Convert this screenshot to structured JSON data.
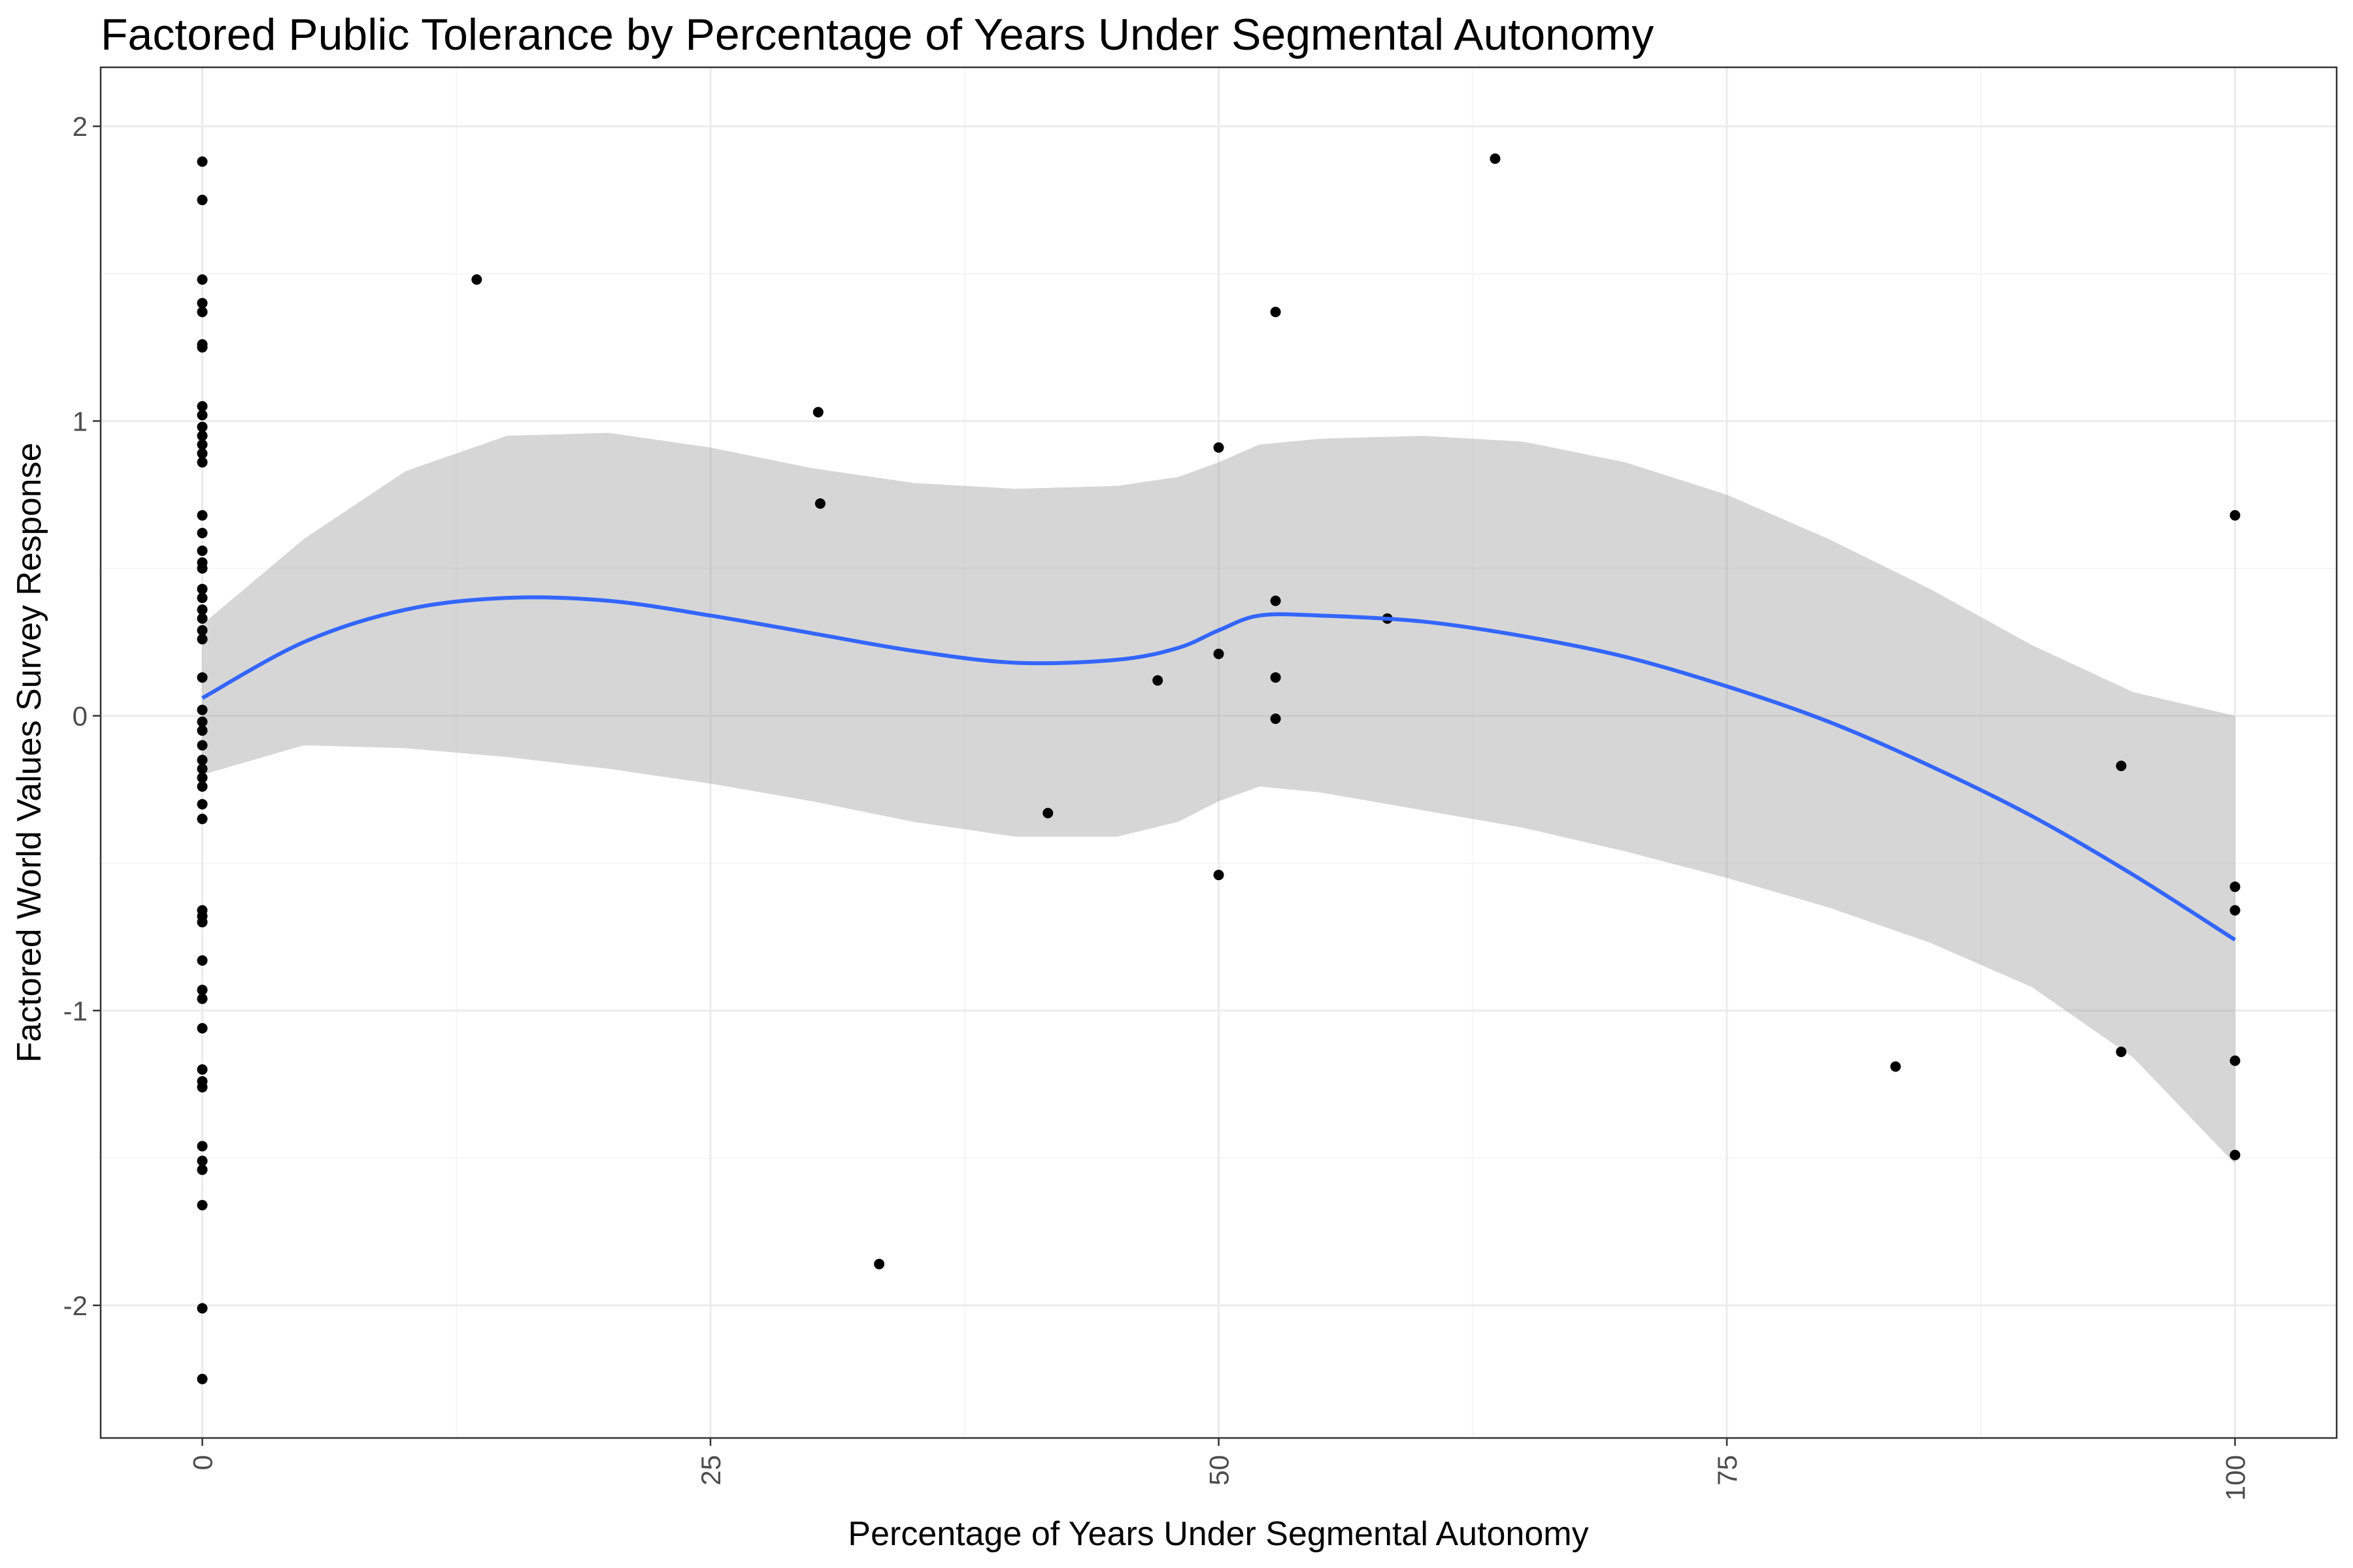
{
  "chart_data": {
    "type": "scatter",
    "title": "Factored Public Tolerance by Percentage of Years Under Segmental Autonomy",
    "xlabel": "Percentage of Years Under Segmental Autonomy",
    "ylabel": "Factored World Values Survey Response",
    "xlim": [
      -5,
      105
    ],
    "ylim": [
      -2.45,
      2.2
    ],
    "x_ticks": [
      0,
      25,
      50,
      75,
      100
    ],
    "y_ticks": [
      -2,
      -1,
      0,
      1,
      2
    ],
    "x_minor_ticks": [
      12.5,
      37.5,
      62.5,
      87.5
    ],
    "y_minor_ticks": [
      -1.5,
      -0.5,
      0.5,
      1.5
    ],
    "x_tick_labels": [
      "0",
      "25",
      "50",
      "75",
      "100"
    ],
    "y_tick_labels": [
      "-2",
      "-1",
      "0",
      "1",
      "2"
    ],
    "grid": true,
    "legend": "none",
    "colors": {
      "points": "#000000",
      "smooth_line": "#3366FF",
      "confidence_band": "#999999",
      "grid": "#ebebeb"
    },
    "points": [
      {
        "x": 0,
        "y": 1.88
      },
      {
        "x": 0,
        "y": 1.75
      },
      {
        "x": 0,
        "y": 1.48
      },
      {
        "x": 0,
        "y": 1.4
      },
      {
        "x": 0,
        "y": 1.37
      },
      {
        "x": 0,
        "y": 1.26
      },
      {
        "x": 0,
        "y": 1.25
      },
      {
        "x": 0,
        "y": 1.05
      },
      {
        "x": 0,
        "y": 1.02
      },
      {
        "x": 0,
        "y": 0.98
      },
      {
        "x": 0,
        "y": 0.95
      },
      {
        "x": 0,
        "y": 0.92
      },
      {
        "x": 0,
        "y": 0.89
      },
      {
        "x": 0,
        "y": 0.86
      },
      {
        "x": 0,
        "y": 0.68
      },
      {
        "x": 0,
        "y": 0.62
      },
      {
        "x": 0,
        "y": 0.56
      },
      {
        "x": 0,
        "y": 0.52
      },
      {
        "x": 0,
        "y": 0.5
      },
      {
        "x": 0,
        "y": 0.43
      },
      {
        "x": 0,
        "y": 0.4
      },
      {
        "x": 0,
        "y": 0.36
      },
      {
        "x": 0,
        "y": 0.33
      },
      {
        "x": 0,
        "y": 0.29
      },
      {
        "x": 0,
        "y": 0.26
      },
      {
        "x": 0,
        "y": 0.13
      },
      {
        "x": 0,
        "y": 0.02
      },
      {
        "x": 0,
        "y": -0.02
      },
      {
        "x": 0,
        "y": -0.05
      },
      {
        "x": 0,
        "y": -0.1
      },
      {
        "x": 0,
        "y": -0.15
      },
      {
        "x": 0,
        "y": -0.18
      },
      {
        "x": 0,
        "y": -0.21
      },
      {
        "x": 0,
        "y": -0.24
      },
      {
        "x": 0,
        "y": -0.3
      },
      {
        "x": 0,
        "y": -0.35
      },
      {
        "x": 0,
        "y": -0.66
      },
      {
        "x": 0,
        "y": -0.68
      },
      {
        "x": 0,
        "y": -0.7
      },
      {
        "x": 0,
        "y": -0.83
      },
      {
        "x": 0,
        "y": -0.93
      },
      {
        "x": 0,
        "y": -0.96
      },
      {
        "x": 0,
        "y": -1.06
      },
      {
        "x": 0,
        "y": -1.2
      },
      {
        "x": 0,
        "y": -1.24
      },
      {
        "x": 0,
        "y": -1.26
      },
      {
        "x": 0,
        "y": -1.46
      },
      {
        "x": 0,
        "y": -1.51
      },
      {
        "x": 0,
        "y": -1.54
      },
      {
        "x": 0,
        "y": -1.66
      },
      {
        "x": 0,
        "y": -2.01
      },
      {
        "x": 0,
        "y": -2.25
      },
      {
        "x": 13.5,
        "y": 1.48
      },
      {
        "x": 30.3,
        "y": 1.03
      },
      {
        "x": 30.4,
        "y": 0.72
      },
      {
        "x": 33.3,
        "y": -1.86
      },
      {
        "x": 41.6,
        "y": -0.33
      },
      {
        "x": 47.0,
        "y": 0.12
      },
      {
        "x": 50.0,
        "y": 0.91
      },
      {
        "x": 50.0,
        "y": 0.21
      },
      {
        "x": 50.0,
        "y": -0.54
      },
      {
        "x": 52.8,
        "y": 1.37
      },
      {
        "x": 52.8,
        "y": 0.39
      },
      {
        "x": 52.8,
        "y": 0.13
      },
      {
        "x": 52.8,
        "y": -0.01
      },
      {
        "x": 58.3,
        "y": 0.33
      },
      {
        "x": 63.6,
        "y": 1.89
      },
      {
        "x": 83.3,
        "y": -1.19
      },
      {
        "x": 94.4,
        "y": -0.17
      },
      {
        "x": 94.4,
        "y": -1.14
      },
      {
        "x": 100,
        "y": 0.68
      },
      {
        "x": 100,
        "y": -0.58
      },
      {
        "x": 100,
        "y": -0.66
      },
      {
        "x": 100,
        "y": -1.17
      },
      {
        "x": 100,
        "y": -1.49
      }
    ],
    "smooth": {
      "x": [
        0,
        5,
        10,
        15,
        20,
        25,
        30,
        35,
        40,
        45,
        48,
        50,
        52,
        55,
        60,
        65,
        70,
        75,
        80,
        85,
        90,
        95,
        100
      ],
      "y": [
        0.06,
        0.25,
        0.36,
        0.4,
        0.39,
        0.34,
        0.28,
        0.22,
        0.18,
        0.19,
        0.23,
        0.29,
        0.34,
        0.34,
        0.32,
        0.27,
        0.2,
        0.1,
        -0.02,
        -0.17,
        -0.34,
        -0.54,
        -0.76
      ],
      "lower": [
        -0.2,
        -0.1,
        -0.11,
        -0.14,
        -0.18,
        -0.23,
        -0.29,
        -0.36,
        -0.41,
        -0.41,
        -0.36,
        -0.29,
        -0.24,
        -0.26,
        -0.32,
        -0.38,
        -0.46,
        -0.55,
        -0.65,
        -0.77,
        -0.92,
        -1.16,
        -1.52
      ],
      "upper": [
        0.31,
        0.6,
        0.83,
        0.95,
        0.96,
        0.91,
        0.84,
        0.79,
        0.77,
        0.78,
        0.81,
        0.86,
        0.92,
        0.94,
        0.95,
        0.93,
        0.86,
        0.75,
        0.6,
        0.43,
        0.24,
        0.08,
        0.0
      ]
    }
  }
}
